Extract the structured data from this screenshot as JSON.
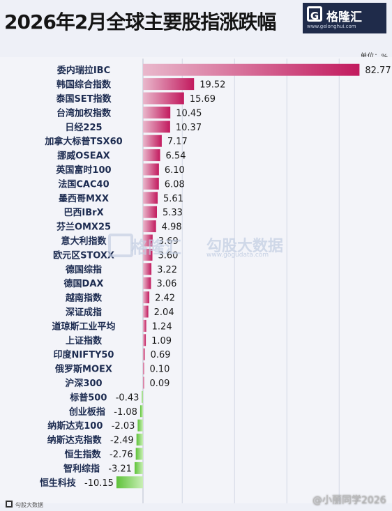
{
  "header": {
    "title": "2026年2月全球主要股指涨跌幅",
    "unit": "单位：%"
  },
  "logo": {
    "mark": "G",
    "name": "格隆汇",
    "site": "www.gelonghui.com"
  },
  "watermark": {
    "brand": "格隆汇",
    "name": "勾股大数据",
    "site": "www.gogudata.com"
  },
  "footer": {
    "credit": "@小丽同学2026",
    "qr_text": "勾股大数据"
  },
  "colors": {
    "positive": "#c21a5e",
    "negative": "#5ec23a",
    "label": "#1c2b50",
    "value": "#1a1a1a"
  },
  "chart_data": {
    "type": "bar",
    "orientation": "horizontal",
    "title": "2026年2月全球主要股指涨跌幅",
    "unit": "%",
    "categories": [
      "委内瑞拉IBC",
      "韩国综合指数",
      "泰国SET指数",
      "台湾加权指数",
      "日经225",
      "加拿大标普TSX60",
      "挪威OSEAX",
      "英国富时100",
      "法国CAC40",
      "墨西哥MXX",
      "巴西IBrX",
      "芬兰OMX25",
      "意大利指数",
      "欧元区STOXX",
      "德国综指",
      "德国DAX",
      "越南指数",
      "深证成指",
      "道琼斯工业平均",
      "上证指数",
      "印度NIFTY50",
      "俄罗斯MOEX",
      "沪深300",
      "标普500",
      "创业板指",
      "纳斯达克100",
      "纳斯达克指数",
      "恒生指数",
      "智利综指",
      "恒生科技"
    ],
    "values": [
      82.77,
      19.52,
      15.69,
      10.45,
      10.37,
      7.17,
      6.54,
      6.1,
      6.08,
      5.61,
      5.33,
      4.98,
      3.69,
      3.6,
      3.22,
      3.06,
      2.42,
      2.04,
      1.24,
      1.09,
      0.69,
      0.1,
      0.09,
      -0.43,
      -1.08,
      -2.03,
      -2.49,
      -2.76,
      -3.21,
      -10.15
    ],
    "value_labels": [
      "82.77",
      "19.52",
      "15.69",
      "10.45",
      "10.37",
      "7.17",
      "6.54",
      "6.10",
      "6.08",
      "5.61",
      "5.33",
      "4.98",
      "3.69",
      "3.60",
      "3.22",
      "3.06",
      "2.42",
      "2.04",
      "1.24",
      "1.09",
      "0.69",
      "0.10",
      "0.09",
      "-0.43",
      "-1.08",
      "-2.03",
      "-2.49",
      "-2.76",
      "-3.21",
      "-10.15"
    ],
    "grid": true
  }
}
